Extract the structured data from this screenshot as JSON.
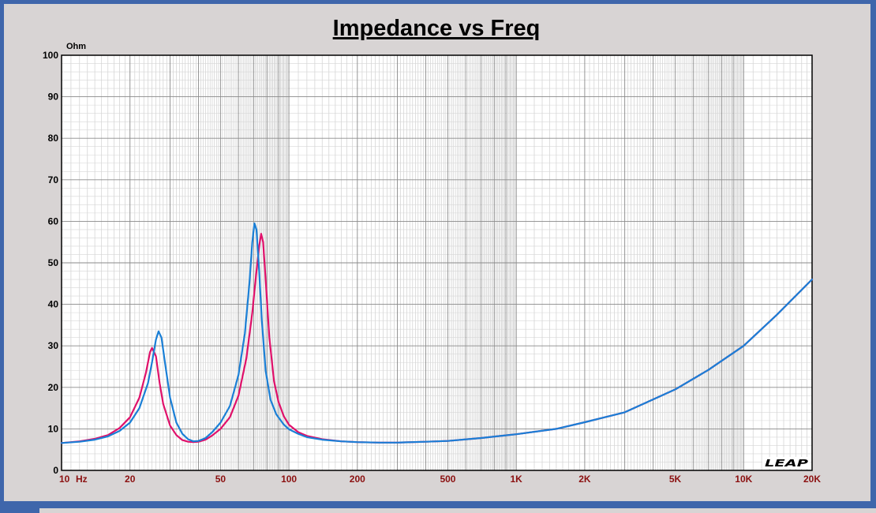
{
  "chart_data": {
    "type": "line",
    "title": "Impedance vs Freq",
    "ylabel": "Ohm",
    "x_scale": "log",
    "xlim": [
      10,
      20000
    ],
    "ylim": [
      0,
      100
    ],
    "grid": true,
    "x_ticks": [
      {
        "value": 10,
        "label": "10"
      },
      {
        "value": 20,
        "label": "20"
      },
      {
        "value": 50,
        "label": "50"
      },
      {
        "value": 100,
        "label": "100"
      },
      {
        "value": 200,
        "label": "200"
      },
      {
        "value": 500,
        "label": "500"
      },
      {
        "value": 1000,
        "label": "1K"
      },
      {
        "value": 2000,
        "label": "2K"
      },
      {
        "value": 5000,
        "label": "5K"
      },
      {
        "value": 10000,
        "label": "10K"
      },
      {
        "value": 20000,
        "label": "20K"
      }
    ],
    "x_unit_label": "Hz",
    "y_ticks": [
      0,
      10,
      20,
      30,
      40,
      50,
      60,
      70,
      80,
      90,
      100
    ],
    "watermark": "LEAP",
    "series": [
      {
        "color": "#e0106a",
        "points": [
          [
            10,
            6.6
          ],
          [
            12,
            7.0
          ],
          [
            14,
            7.6
          ],
          [
            16,
            8.5
          ],
          [
            18,
            10.2
          ],
          [
            20,
            12.8
          ],
          [
            22,
            17.5
          ],
          [
            23.5,
            23.5
          ],
          [
            24.5,
            28.5
          ],
          [
            25,
            29.5
          ],
          [
            26,
            27.5
          ],
          [
            27,
            21.0
          ],
          [
            28,
            16.0
          ],
          [
            30,
            10.8
          ],
          [
            32,
            8.5
          ],
          [
            34,
            7.3
          ],
          [
            36,
            6.9
          ],
          [
            38,
            6.8
          ],
          [
            40,
            6.9
          ],
          [
            43,
            7.4
          ],
          [
            46,
            8.4
          ],
          [
            50,
            10.0
          ],
          [
            55,
            12.8
          ],
          [
            60,
            18.0
          ],
          [
            65,
            27.0
          ],
          [
            69,
            38.0
          ],
          [
            72,
            48.0
          ],
          [
            74,
            54.0
          ],
          [
            75.5,
            57.0
          ],
          [
            77,
            55.0
          ],
          [
            79,
            46.0
          ],
          [
            82,
            32.0
          ],
          [
            86,
            21.5
          ],
          [
            90,
            16.5
          ],
          [
            95,
            13.0
          ],
          [
            100,
            11.0
          ],
          [
            110,
            9.2
          ],
          [
            120,
            8.3
          ],
          [
            140,
            7.5
          ],
          [
            170,
            7.0
          ],
          [
            200,
            6.8
          ],
          [
            250,
            6.7
          ],
          [
            300,
            6.7
          ],
          [
            400,
            6.9
          ],
          [
            500,
            7.1
          ],
          [
            700,
            7.8
          ],
          [
            1000,
            8.7
          ],
          [
            1500,
            10.0
          ],
          [
            2000,
            11.6
          ],
          [
            3000,
            14.0
          ],
          [
            5000,
            19.5
          ],
          [
            7000,
            24.2
          ],
          [
            10000,
            30.0
          ],
          [
            14000,
            37.5
          ],
          [
            20000,
            46.0
          ]
        ]
      },
      {
        "color": "#1a7fd6",
        "points": [
          [
            10,
            6.6
          ],
          [
            12,
            6.9
          ],
          [
            14,
            7.4
          ],
          [
            16,
            8.2
          ],
          [
            18,
            9.5
          ],
          [
            20,
            11.5
          ],
          [
            22,
            15.0
          ],
          [
            24,
            21.0
          ],
          [
            25,
            26.0
          ],
          [
            26,
            31.5
          ],
          [
            26.7,
            33.5
          ],
          [
            27.5,
            32.0
          ],
          [
            28.5,
            26.0
          ],
          [
            30,
            17.5
          ],
          [
            32,
            11.5
          ],
          [
            34,
            8.8
          ],
          [
            36,
            7.5
          ],
          [
            38,
            7.0
          ],
          [
            40,
            7.1
          ],
          [
            43,
            7.8
          ],
          [
            46,
            9.2
          ],
          [
            50,
            11.5
          ],
          [
            55,
            15.5
          ],
          [
            60,
            23.0
          ],
          [
            64,
            33.0
          ],
          [
            67,
            45.0
          ],
          [
            69,
            55.0
          ],
          [
            70.5,
            59.5
          ],
          [
            72,
            58.0
          ],
          [
            74,
            48.0
          ],
          [
            76,
            36.0
          ],
          [
            79,
            24.0
          ],
          [
            83,
            17.0
          ],
          [
            88,
            13.5
          ],
          [
            95,
            11.0
          ],
          [
            100,
            9.9
          ],
          [
            110,
            8.8
          ],
          [
            120,
            8.0
          ],
          [
            140,
            7.4
          ],
          [
            170,
            7.0
          ],
          [
            200,
            6.8
          ],
          [
            250,
            6.7
          ],
          [
            300,
            6.7
          ],
          [
            400,
            6.9
          ],
          [
            500,
            7.1
          ],
          [
            700,
            7.8
          ],
          [
            1000,
            8.7
          ],
          [
            1500,
            10.0
          ],
          [
            2000,
            11.6
          ],
          [
            3000,
            14.0
          ],
          [
            5000,
            19.5
          ],
          [
            7000,
            24.2
          ],
          [
            10000,
            30.0
          ],
          [
            14000,
            37.5
          ],
          [
            20000,
            46.0
          ]
        ]
      }
    ]
  }
}
